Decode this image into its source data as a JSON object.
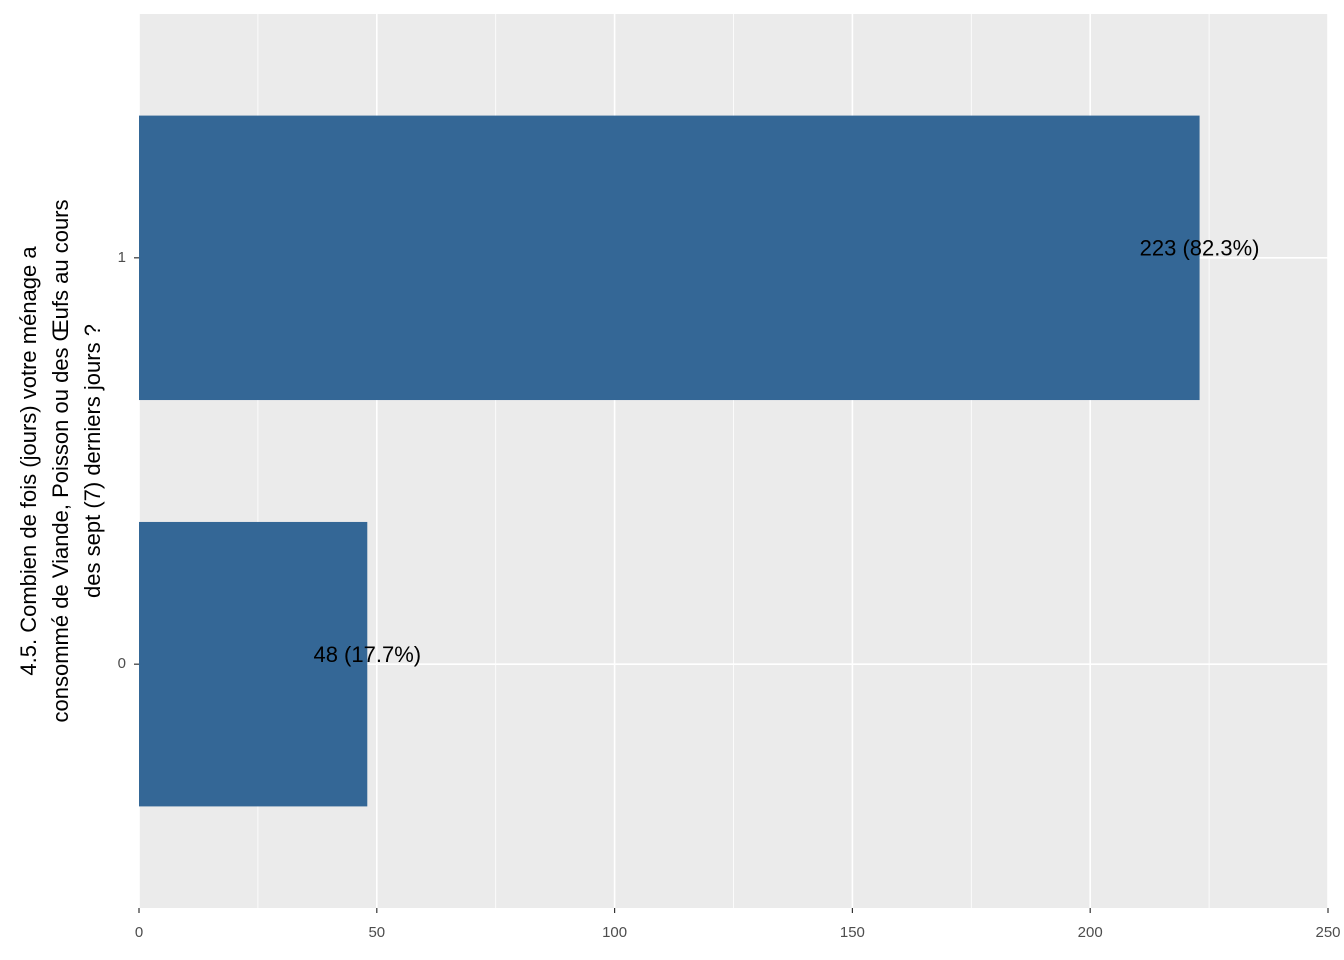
{
  "chart_data": {
    "type": "barh",
    "y_label": [
      "4.5. Combien de fois (jours) votre ménage a",
      "consommé de Viande, Poisson ou des Œufs au cours",
      "des sept (7) derniers jours ?"
    ],
    "categories": [
      "0",
      "1"
    ],
    "values": [
      48,
      223
    ],
    "value_labels": [
      "48 (17.7%)",
      "223 (82.3%)"
    ],
    "color": "#346796",
    "xlim": [
      0,
      250
    ],
    "xticks": [
      0,
      50,
      100,
      150,
      200,
      250
    ],
    "grid": true
  }
}
